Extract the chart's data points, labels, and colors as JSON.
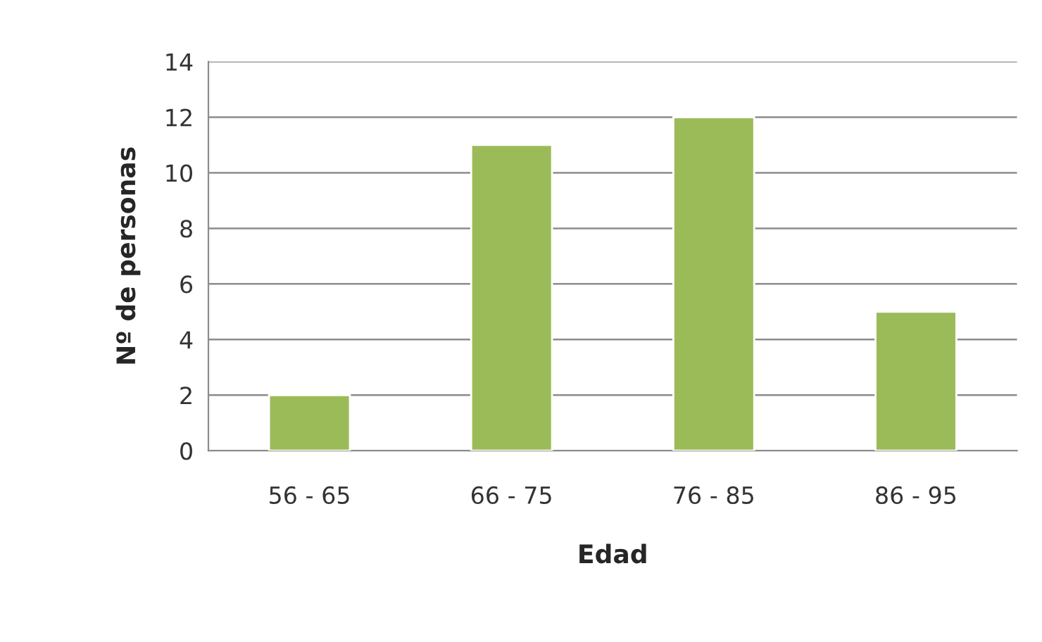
{
  "chart_data": {
    "type": "bar",
    "xlabel": "Edad",
    "ylabel": "Nº de personas",
    "categories": [
      "56 - 65",
      "66 - 75",
      "76 - 85",
      "86 - 95"
    ],
    "values": [
      2,
      11,
      12,
      5
    ],
    "color": "#9bbb59",
    "ylim": [
      0,
      14
    ],
    "yticks": [
      0,
      2,
      4,
      6,
      8,
      10,
      12,
      14
    ],
    "grid": "y",
    "legend": false
  }
}
